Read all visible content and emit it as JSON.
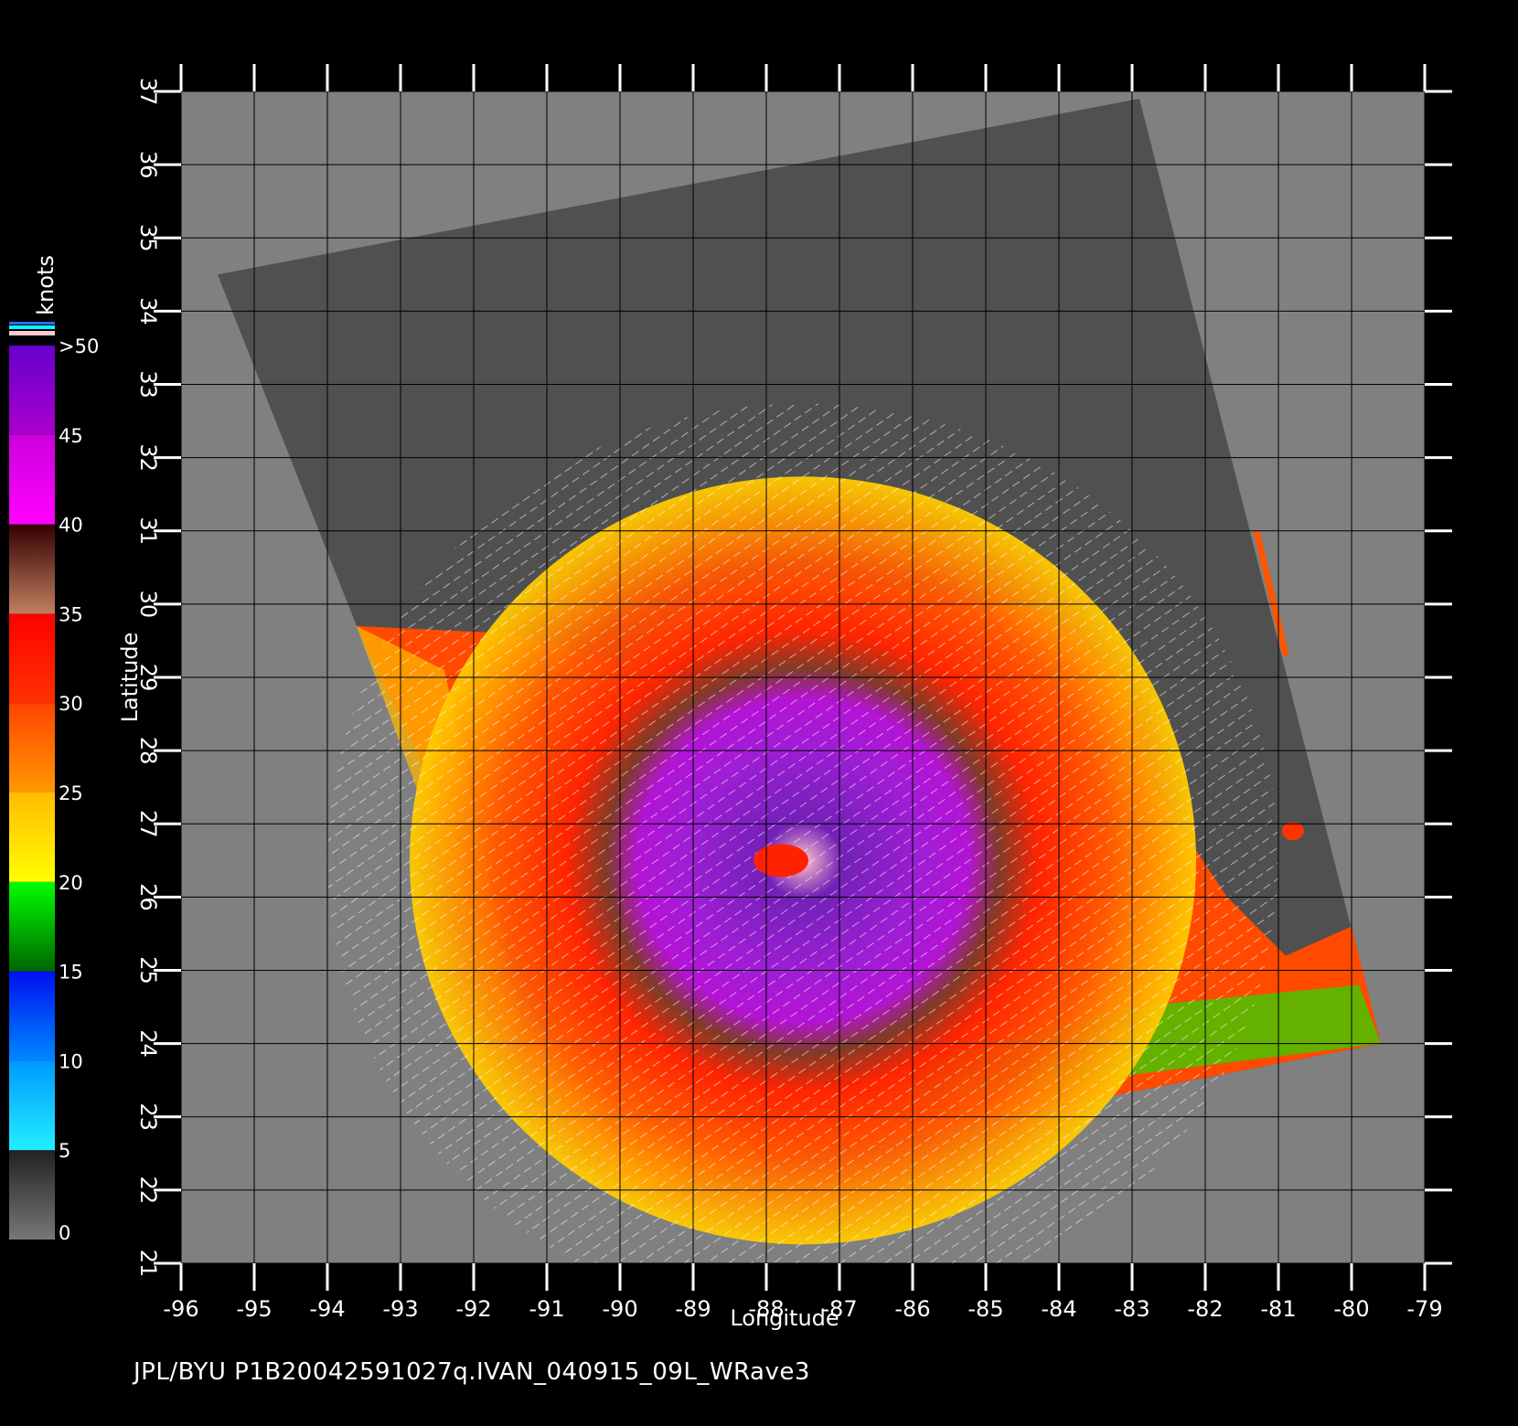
{
  "chart_data": {
    "type": "heatmap",
    "xlabel": "Longitude",
    "ylabel": "Latitude",
    "xlim": [
      -96,
      -79
    ],
    "ylim": [
      21,
      37
    ],
    "x_ticks": [
      "-96",
      "-95",
      "-94",
      "-93",
      "-92",
      "-91",
      "-90",
      "-89",
      "-88",
      "-87",
      "-86",
      "-85",
      "-84",
      "-83",
      "-82",
      "-81",
      "-80",
      "-79"
    ],
    "y_ticks": [
      "21",
      "22",
      "23",
      "24",
      "25",
      "26",
      "27",
      "28",
      "29",
      "30",
      "31",
      "32",
      "33",
      "34",
      "35",
      "36",
      "37"
    ],
    "grid": true,
    "colorbar": {
      "label": "knots",
      "tick_labels": [
        "0",
        "5",
        "10",
        "15",
        "20",
        "25",
        "30",
        "35",
        "40",
        "45",
        ">50"
      ],
      "bands": [
        {
          "range": [
            0,
            5
          ],
          "colors": [
            "#777777",
            "#222222"
          ]
        },
        {
          "range": [
            5,
            10
          ],
          "colors": [
            "#22eeff",
            "#0099ff"
          ]
        },
        {
          "range": [
            10,
            15
          ],
          "colors": [
            "#0088ff",
            "#0010f0"
          ]
        },
        {
          "range": [
            15,
            20
          ],
          "colors": [
            "#006600",
            "#00ff00"
          ]
        },
        {
          "range": [
            20,
            25
          ],
          "colors": [
            "#ffff00",
            "#ffbb00"
          ]
        },
        {
          "range": [
            25,
            30
          ],
          "colors": [
            "#ff9900",
            "#ff4400"
          ]
        },
        {
          "range": [
            30,
            35
          ],
          "colors": [
            "#ff3300",
            "#ff0000"
          ]
        },
        {
          "range": [
            35,
            40
          ],
          "colors": [
            "#c08060",
            "#330000"
          ]
        },
        {
          "range": [
            40,
            45
          ],
          "colors": [
            "#ff00ff",
            "#cc00dd"
          ]
        },
        {
          "range": [
            45,
            50
          ],
          "colors": [
            "#aa00cc",
            "#6600cc"
          ]
        }
      ]
    },
    "swath_outline": [
      [
        -95.5,
        34.5
      ],
      [
        -82.9,
        36.9
      ],
      [
        -79.6,
        24.0
      ],
      [
        -89.9,
        22.0
      ],
      [
        -93.6,
        29.7
      ]
    ],
    "eye_center": [
      -87.5,
      26.5
    ],
    "colors": {
      "background": "#000000",
      "land": "#808080",
      "no_data_swath": "#505050",
      "grid": "#000000"
    }
  },
  "footer": "JPL/BYU  P1B20042591027q.IVAN_040915_09L_WRave3"
}
